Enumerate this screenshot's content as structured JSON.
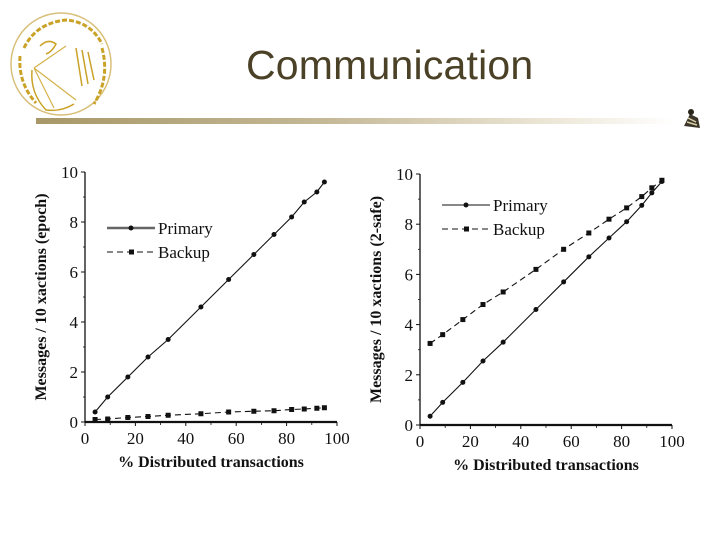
{
  "slide": {
    "title": "Communication",
    "logo_icon": "university-seal-icon",
    "corner_icon": "decorative-mascot-icon",
    "colors": {
      "title": "#4a4127",
      "rule_start": "#a89868",
      "logo_gold": "#c9a227",
      "chart_ink": "#111111"
    }
  },
  "chart_data": [
    {
      "type": "line",
      "title": "",
      "xlabel": "% Distributed transactions",
      "ylabel": "Messages / 10 xactions (epoch)",
      "xlim": [
        0,
        100
      ],
      "ylim": [
        0,
        10
      ],
      "xticks": [
        "0",
        "20",
        "40",
        "60",
        "80",
        "100"
      ],
      "yticks": [
        "0",
        "2",
        "4",
        "6",
        "8",
        "10"
      ],
      "grid": false,
      "legend_position": "upper-left",
      "x": [
        4,
        9,
        17,
        25,
        33,
        46,
        57,
        67,
        75,
        82,
        87,
        92,
        95
      ],
      "series": [
        {
          "name": "Primary",
          "style": "solid",
          "values": [
            0.4,
            1.0,
            1.8,
            2.6,
            3.3,
            4.6,
            5.7,
            6.7,
            7.5,
            8.2,
            8.8,
            9.2,
            9.6
          ]
        },
        {
          "name": "Backup",
          "style": "dashed",
          "values": [
            0.1,
            0.12,
            0.18,
            0.22,
            0.27,
            0.33,
            0.4,
            0.43,
            0.45,
            0.5,
            0.52,
            0.55,
            0.57
          ]
        }
      ]
    },
    {
      "type": "line",
      "title": "",
      "xlabel": "% Distributed transactions",
      "ylabel": "Messages / 10 xactions (2-safe)",
      "xlim": [
        0,
        100
      ],
      "ylim": [
        0,
        10
      ],
      "xticks": [
        "0",
        "20",
        "40",
        "60",
        "80",
        "100"
      ],
      "yticks": [
        "0",
        "2",
        "4",
        "6",
        "8",
        "10"
      ],
      "grid": false,
      "legend_position": "upper-left",
      "x": [
        4,
        9,
        17,
        25,
        33,
        46,
        57,
        67,
        75,
        82,
        88,
        92,
        96
      ],
      "series": [
        {
          "name": "Primary",
          "style": "solid",
          "values": [
            0.35,
            0.9,
            1.7,
            2.55,
            3.3,
            4.6,
            5.7,
            6.7,
            7.45,
            8.1,
            8.75,
            9.25,
            9.7
          ]
        },
        {
          "name": "Backup",
          "style": "dashed",
          "values": [
            3.25,
            3.6,
            4.2,
            4.8,
            5.3,
            6.2,
            7.0,
            7.65,
            8.2,
            8.65,
            9.1,
            9.45,
            9.75
          ]
        }
      ]
    }
  ]
}
